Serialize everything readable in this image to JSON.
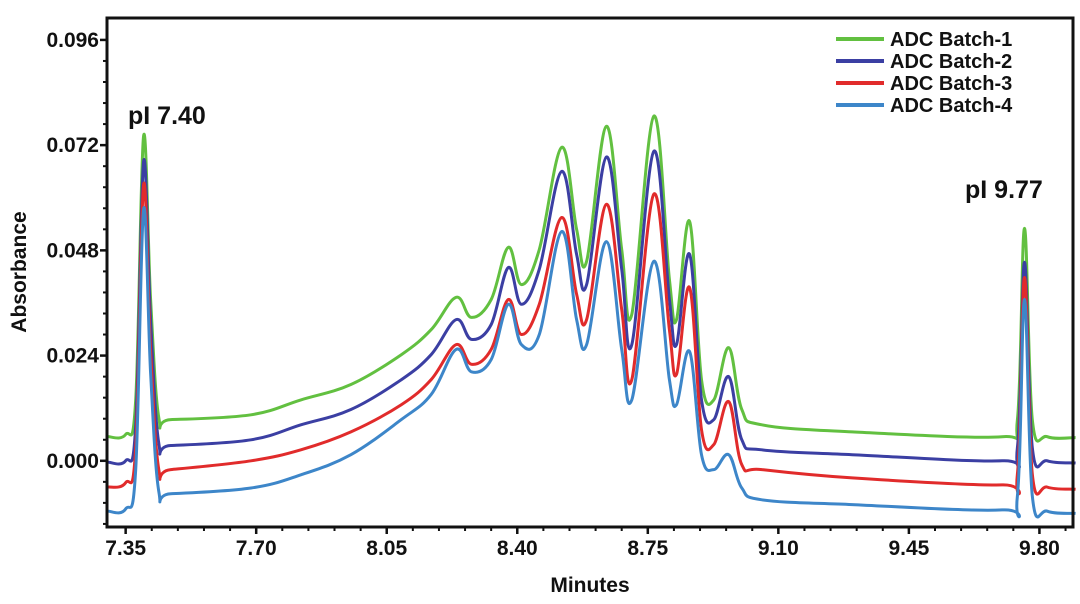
{
  "chart_data": {
    "type": "line",
    "title": "",
    "xlabel": "Minutes",
    "ylabel": "Absorbance",
    "xlim": [
      7.3,
      9.89
    ],
    "ylim": [
      -0.0151,
      0.101
    ],
    "xticks": [
      "7.35",
      "7.70",
      "8.05",
      "8.40",
      "8.75",
      "9.10",
      "9.45",
      "9.80"
    ],
    "yticks": [
      "0.000",
      "0.024",
      "0.048",
      "0.072",
      "0.096"
    ],
    "grid": false,
    "legend_position": "top-right",
    "annotations": [
      {
        "text": "pI 7.40",
        "x": 7.4
      },
      {
        "text": "pI 9.77",
        "x": 9.77
      }
    ],
    "x": [
      7.302,
      7.35,
      7.377,
      7.398,
      7.417,
      7.439,
      7.471,
      7.686,
      7.82,
      7.954,
      8.089,
      8.169,
      8.236,
      8.277,
      8.33,
      8.376,
      8.411,
      8.459,
      8.519,
      8.559,
      8.586,
      8.639,
      8.68,
      8.707,
      8.766,
      8.808,
      8.827,
      8.862,
      8.894,
      8.927,
      8.967,
      9.002,
      9.056,
      9.298,
      9.7,
      9.741,
      9.76,
      9.781,
      9.821,
      9.897
    ],
    "series": [
      {
        "name": "ADC Batch-1",
        "color": "#62c040",
        "values": [
          0.0055,
          0.006,
          0.0139,
          0.0741,
          0.0368,
          0.0098,
          0.0094,
          0.0105,
          0.0139,
          0.0174,
          0.0242,
          0.0299,
          0.0373,
          0.0327,
          0.0368,
          0.0487,
          0.0402,
          0.0482,
          0.0715,
          0.0528,
          0.0455,
          0.0763,
          0.0482,
          0.0334,
          0.0786,
          0.0414,
          0.0322,
          0.0546,
          0.0185,
          0.0139,
          0.0258,
          0.0117,
          0.0082,
          0.0066,
          0.0055,
          0.0094,
          0.053,
          0.0094,
          0.0055,
          0.0053
        ]
      },
      {
        "name": "ADC Batch-2",
        "color": "#3b3fa3",
        "values": [
          -0.0003,
          0.0,
          0.008,
          0.0683,
          0.032,
          0.004,
          0.0035,
          0.0048,
          0.0082,
          0.0117,
          0.0185,
          0.0242,
          0.0322,
          0.0277,
          0.0311,
          0.0441,
          0.0357,
          0.0437,
          0.066,
          0.0471,
          0.0402,
          0.0693,
          0.0437,
          0.0265,
          0.0706,
          0.0368,
          0.0265,
          0.0471,
          0.0139,
          0.0094,
          0.0192,
          0.0048,
          0.0025,
          0.0014,
          0.0,
          0.003,
          0.0453,
          0.003,
          0.0,
          -0.0005
        ]
      },
      {
        "name": "ADC Batch-3",
        "color": "#e12b2b",
        "values": [
          -0.006,
          -0.005,
          0.003,
          0.063,
          0.025,
          -0.002,
          -0.002,
          0.0,
          0.0025,
          0.0066,
          0.0128,
          0.0185,
          0.0265,
          0.022,
          0.0254,
          0.0368,
          0.0288,
          0.0357,
          0.0555,
          0.038,
          0.0322,
          0.0585,
          0.0345,
          0.0185,
          0.0608,
          0.0299,
          0.0197,
          0.0395,
          0.0071,
          0.0037,
          0.0135,
          -0.0009,
          -0.002,
          -0.0039,
          -0.0055,
          -0.003,
          0.0418,
          -0.003,
          -0.006,
          -0.0065
        ]
      },
      {
        "name": "ADC Batch-4",
        "color": "#3d86c9",
        "values": [
          -0.0115,
          -0.011,
          -0.002,
          0.0574,
          0.02,
          -0.007,
          -0.0075,
          -0.0062,
          -0.0032,
          0.0014,
          0.0094,
          0.0151,
          0.0254,
          0.0203,
          0.0231,
          0.0357,
          0.0265,
          0.0288,
          0.0523,
          0.0322,
          0.0265,
          0.05,
          0.0254,
          0.0139,
          0.0455,
          0.0185,
          0.0128,
          0.0249,
          0.0014,
          -0.002,
          0.0014,
          -0.0062,
          -0.0089,
          -0.01,
          -0.0112,
          -0.008,
          0.0368,
          -0.008,
          -0.0115,
          -0.012
        ]
      }
    ]
  }
}
